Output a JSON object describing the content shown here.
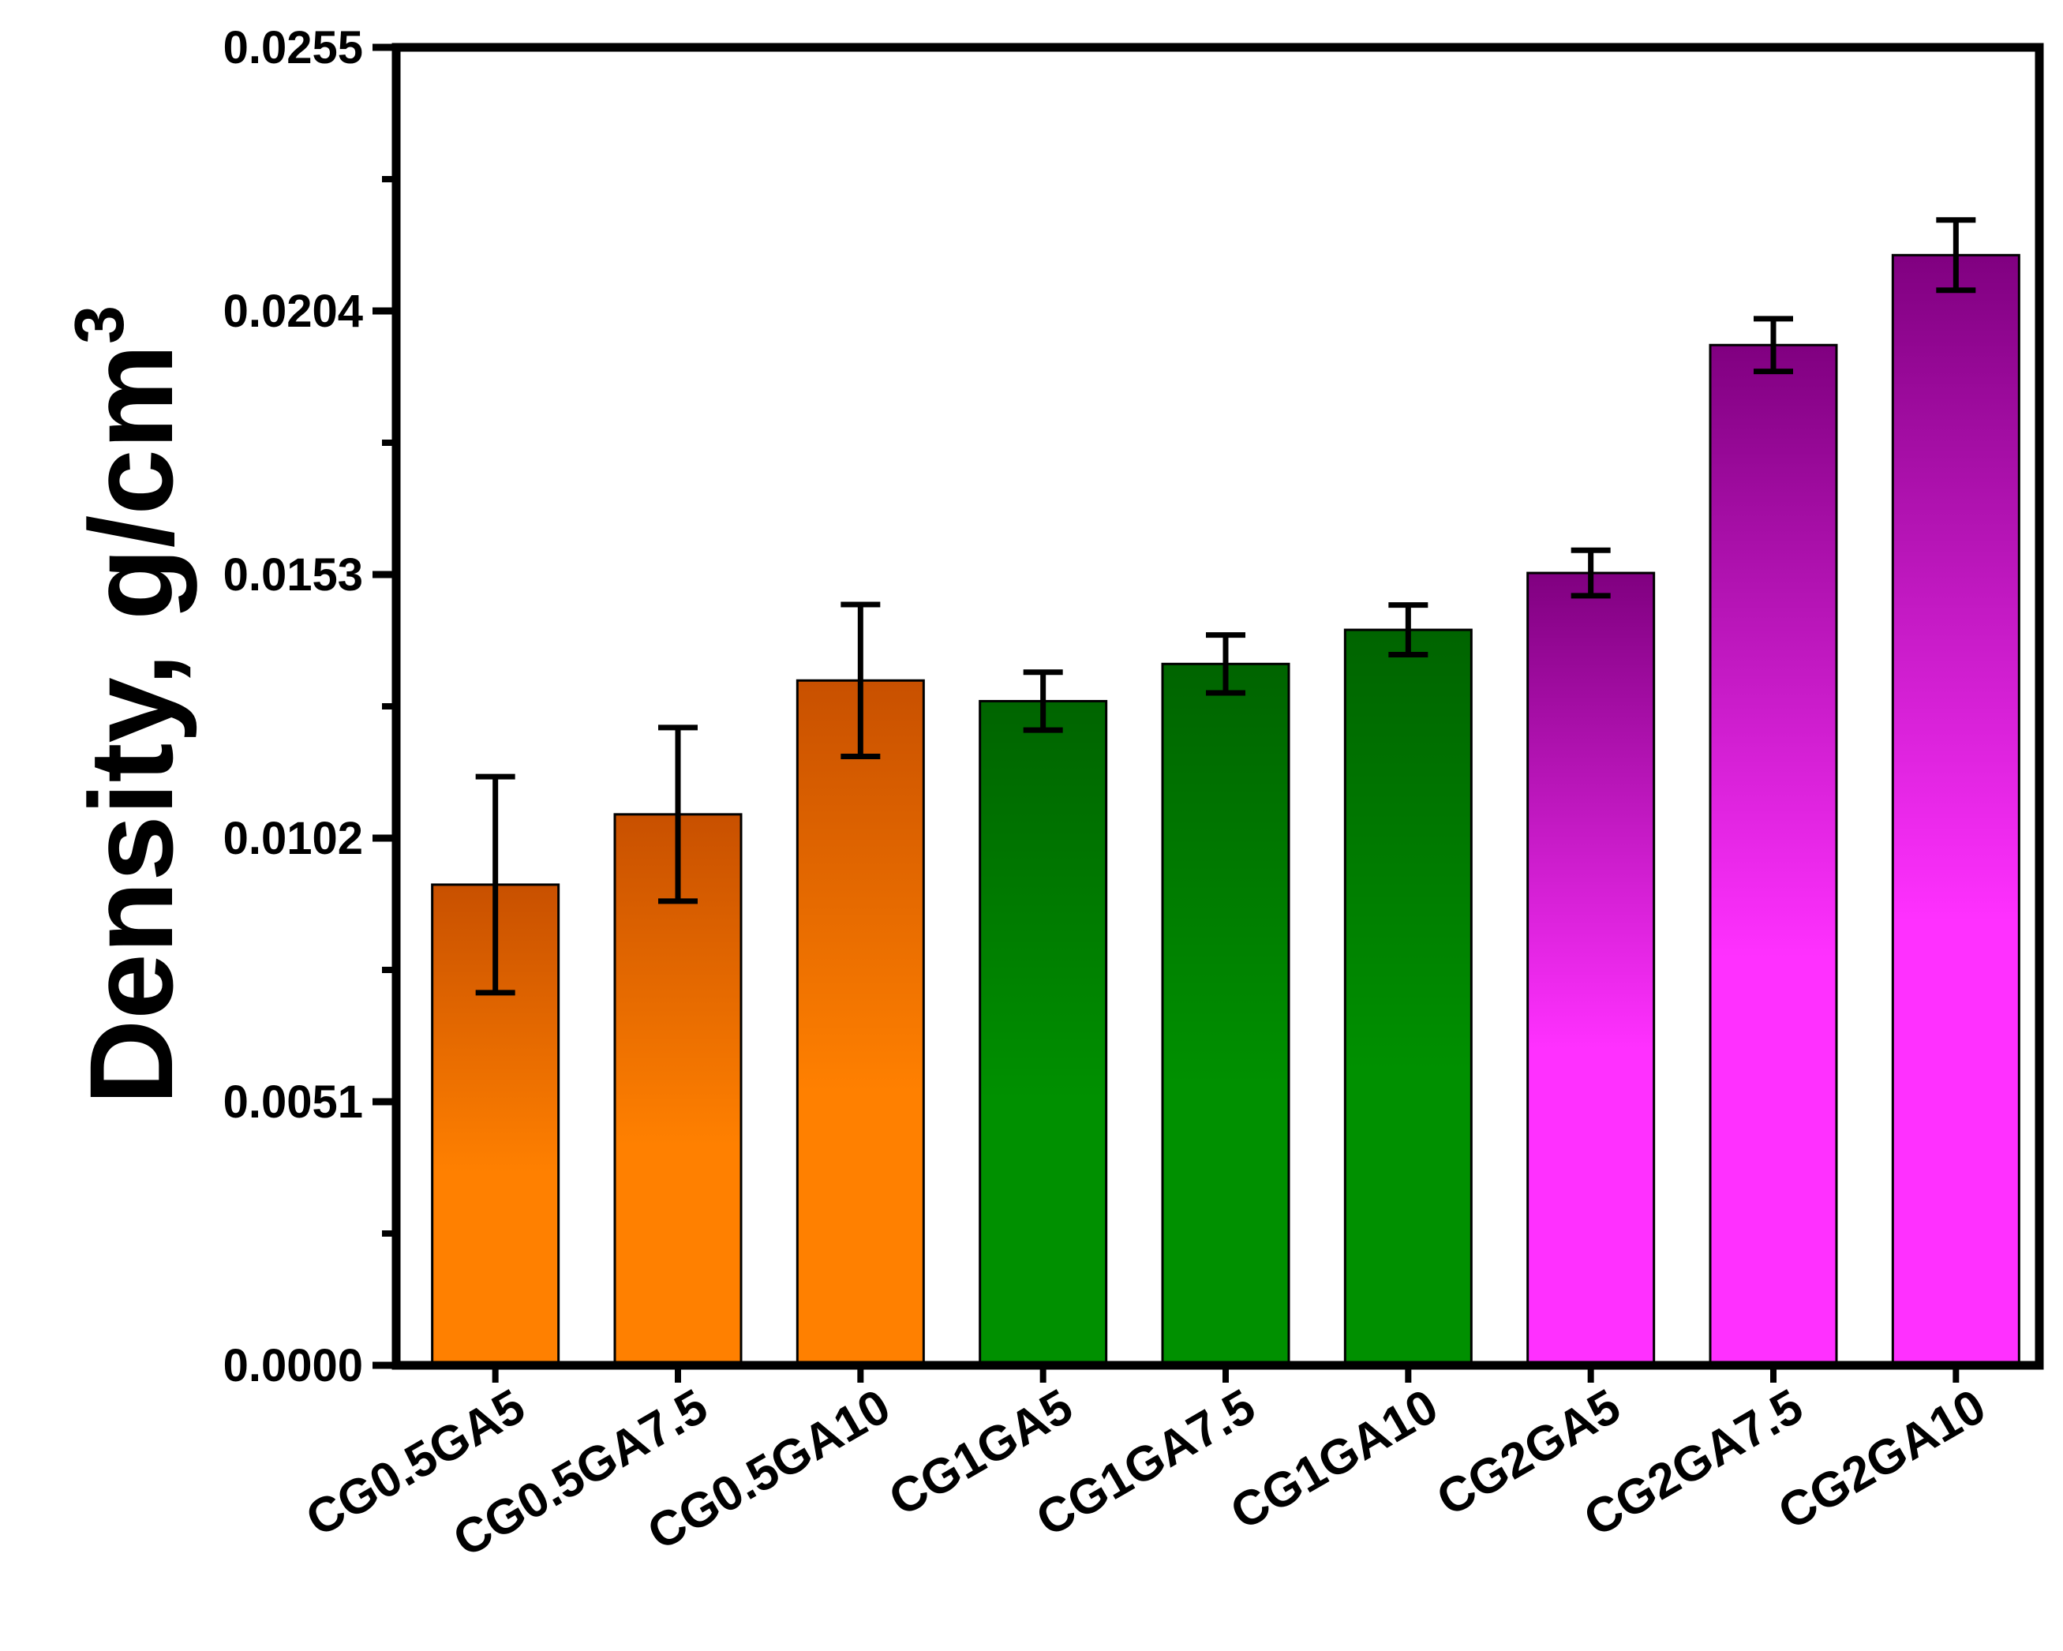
{
  "chart_data": {
    "type": "bar",
    "title": "",
    "xlabel": "",
    "ylabel": "Density, g/cm",
    "ylabel_superscript": "3",
    "ylim": [
      0,
      0.0255
    ],
    "yticks": [
      "0.0000",
      "0.0051",
      "0.0102",
      "0.0153",
      "0.0204",
      "0.0255"
    ],
    "grid": false,
    "categories": [
      "CG0.5GA5",
      "CG0.5GA7.5",
      "CG0.5GA10",
      "CG1GA5",
      "CG1GA7.5",
      "CG1GA10",
      "CG2GA5",
      "CG2GA7.5",
      "CG2GA10"
    ],
    "values": [
      0.0093,
      0.01066,
      0.01325,
      0.01285,
      0.01357,
      0.01423,
      0.01533,
      0.01974,
      0.02148
    ],
    "errors": [
      0.00209,
      0.00168,
      0.00147,
      0.00056,
      0.00056,
      0.00048,
      0.00044,
      0.00051,
      0.00068
    ],
    "bar_colors": [
      {
        "top": "#c85000",
        "bottom": "#ff8000"
      },
      {
        "top": "#c85000",
        "bottom": "#ff8000"
      },
      {
        "top": "#c85000",
        "bottom": "#ff8000"
      },
      {
        "top": "#006400",
        "bottom": "#009000"
      },
      {
        "top": "#006400",
        "bottom": "#009000"
      },
      {
        "top": "#006400",
        "bottom": "#009000"
      },
      {
        "top": "#800080",
        "bottom": "#ff30ff"
      },
      {
        "top": "#800080",
        "bottom": "#ff30ff"
      },
      {
        "top": "#800080",
        "bottom": "#ff30ff"
      }
    ]
  }
}
